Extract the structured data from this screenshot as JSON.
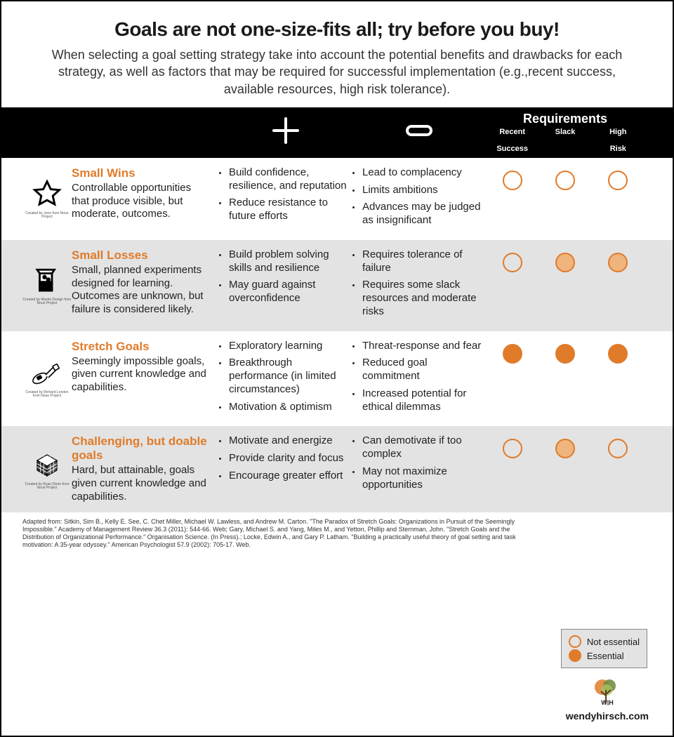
{
  "colors": {
    "accent": "#e07b2a",
    "accent_light": "#f0b47e",
    "header_bg": "#000000",
    "shade_bg": "#e3e3e3"
  },
  "title": "Goals are not one-size-fits all; try before you buy!",
  "subtitle": "When selecting a goal setting strategy take into account the potential benefits and drawbacks for each strategy, as well as factors that may be required for successful implementation (e.g.,recent success, available resources, high risk tolerance).",
  "header": {
    "requirements_title": "Requirements",
    "req_cols": {
      "c1a": "Recent",
      "c1b": "Success",
      "c2": "Slack",
      "c3a": "High",
      "c3b": "Risk"
    }
  },
  "rows": [
    {
      "title": "Small Wins",
      "def": "Controllable opportunities that produce visible, but moderate, outcomes.",
      "plus": [
        "Build confidence, resilience, and reputation",
        "Reduce resistance to future efforts"
      ],
      "minus": [
        "Lead to complacency",
        "Limits ambitions",
        "Advances may be judged as insignificant"
      ],
      "req": [
        "open",
        "open",
        "open"
      ],
      "credit": "Created by Jono from Noun Project"
    },
    {
      "title": "Small Losses",
      "def": "Small, planned experiments designed for learning. Outcomes are unknown, but failure is considered likely.",
      "plus": [
        "Build problem solving skills and resilience",
        "May guard against overconfidence"
      ],
      "minus": [
        "Requires tolerance of failure",
        "Requires some slack resources and moderate risks"
      ],
      "req": [
        "open",
        "partial",
        "partial"
      ],
      "credit": "Created by Maxim Design from Noun Project"
    },
    {
      "title": "Stretch Goals",
      "def": "Seemingly impossible goals, given current knowledge and capabilities.",
      "plus": [
        "Exploratory learning",
        "Breakthrough performance (in limited circumstances)",
        "Motivation & optimism"
      ],
      "minus": [
        "Threat-response and fear",
        "Reduced goal commitment",
        "Increased potential for ethical dilemmas"
      ],
      "req": [
        "full",
        "full",
        "full"
      ],
      "credit": "Created by Richard London from Noun Project"
    },
    {
      "title": "Challenging, but doable goals",
      "def": "Hard, but attainable, goals given current knowledge and capabilities.",
      "plus": [
        "Motivate and energize",
        "Provide clarity and focus",
        "Encourage greater effort"
      ],
      "minus": [
        "Can demotivate if too complex",
        "May not maximize opportunities"
      ],
      "req": [
        "open",
        "partial",
        "open"
      ],
      "credit": "Created by Ryan Dizon from Noun Project"
    }
  ],
  "legend": {
    "not_essential": "Not essential",
    "essential": "Essential"
  },
  "footer": "Adapted from: Sitkin, Sim B., Kelly E. See, C. Chet Miller, Michael W. Lawless, and Andrew M. Carton. \"The Paradox of Stretch Goals: Organizations in Pursuit of the Seemingly Impossible.\" Academy of Management Review 36.3 (2011): 544-66. Web; Gary, Michael S. and Yang, Miles M., and Yetton, Phillip and Sternman, John.  \"Stretch Goals and the Distribution of Organizational Performance.\" Organisation Science. (In Press).; Locke, Edwin A., and Gary P. Latham. \"Building a practically useful theory of goal setting and task motivation: A 35-year odyssey.\" American Psychologist 57.9 (2002): 705-17. Web.",
  "brand": "wendyhirsch.com"
}
